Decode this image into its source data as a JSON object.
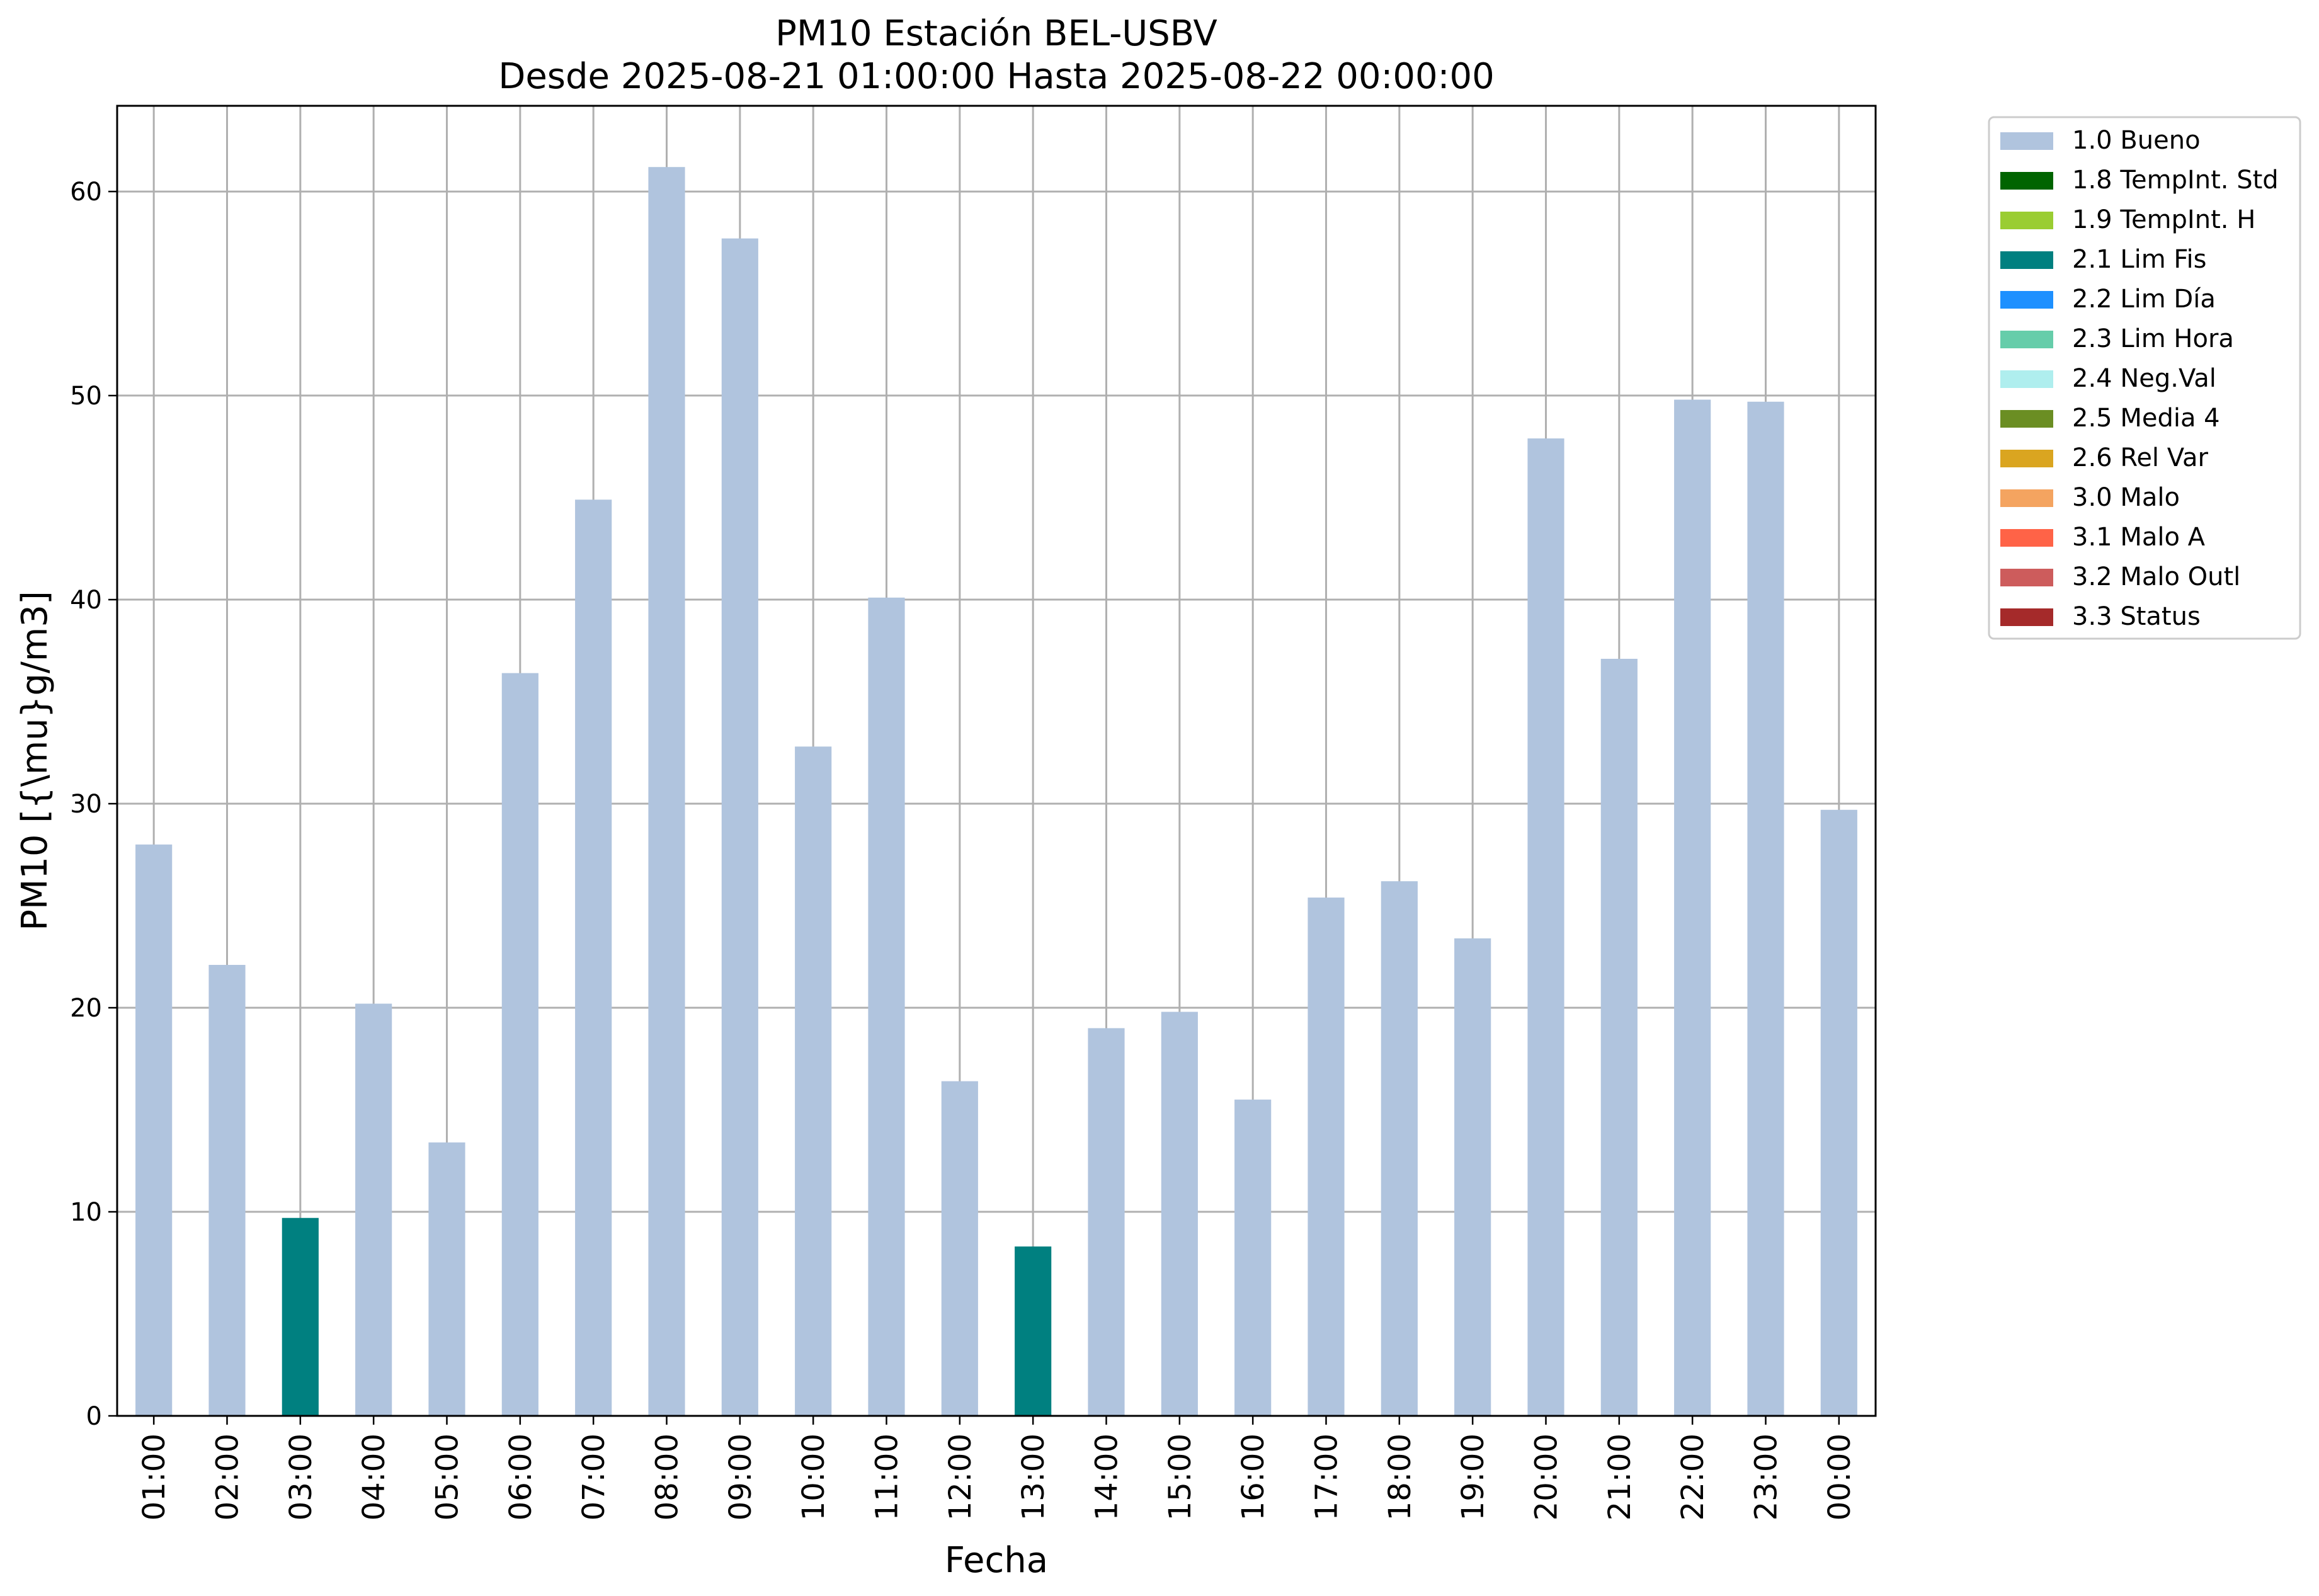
{
  "chart_data": {
    "type": "bar",
    "title_lines": [
      "PM10 Estación BEL-USBV",
      "Desde 2025-08-21 01:00:00 Hasta 2025-08-22 00:00:00"
    ],
    "xlabel": "Fecha",
    "ylabel": "PM10 [{\\mu}g/m3]",
    "ylim": [
      0,
      64.2
    ],
    "yticks": [
      0,
      10,
      20,
      30,
      40,
      50,
      60
    ],
    "grid": true,
    "legend_position": "outside-top-right",
    "categories": [
      "01:00",
      "02:00",
      "03:00",
      "04:00",
      "05:00",
      "06:00",
      "07:00",
      "08:00",
      "09:00",
      "10:00",
      "11:00",
      "12:00",
      "13:00",
      "14:00",
      "15:00",
      "16:00",
      "17:00",
      "18:00",
      "19:00",
      "20:00",
      "21:00",
      "22:00",
      "23:00",
      "00:00"
    ],
    "values": [
      28.0,
      22.1,
      9.7,
      20.2,
      13.4,
      36.4,
      44.9,
      61.2,
      57.7,
      32.8,
      40.1,
      16.4,
      8.3,
      19.0,
      19.8,
      15.5,
      25.4,
      26.2,
      23.4,
      47.9,
      37.1,
      49.8,
      49.7,
      29.7
    ],
    "flags": [
      "1.0 Bueno",
      "1.0 Bueno",
      "2.1 Lim Fis",
      "1.0 Bueno",
      "1.0 Bueno",
      "1.0 Bueno",
      "1.0 Bueno",
      "1.0 Bueno",
      "1.0 Bueno",
      "1.0 Bueno",
      "1.0 Bueno",
      "1.0 Bueno",
      "2.1 Lim Fis",
      "1.0 Bueno",
      "1.0 Bueno",
      "1.0 Bueno",
      "1.0 Bueno",
      "1.0 Bueno",
      "1.0 Bueno",
      "1.0 Bueno",
      "1.0 Bueno",
      "1.0 Bueno",
      "1.0 Bueno",
      "1.0 Bueno"
    ],
    "legend": [
      {
        "label": "1.0 Bueno",
        "color": "#b0c4de"
      },
      {
        "label": "1.8 TempInt. Std",
        "color": "#006400"
      },
      {
        "label": "1.9 TempInt. H",
        "color": "#9acd32"
      },
      {
        "label": "2.1 Lim Fis",
        "color": "#008080"
      },
      {
        "label": "2.2 Lim Día",
        "color": "#1e90ff"
      },
      {
        "label": "2.3 Lim Hora",
        "color": "#66cdaa"
      },
      {
        "label": "2.4 Neg.Val",
        "color": "#afeeee"
      },
      {
        "label": "2.5 Media 4",
        "color": "#6b8e23"
      },
      {
        "label": "2.6 Rel Var",
        "color": "#daa520"
      },
      {
        "label": "3.0 Malo",
        "color": "#f4a460"
      },
      {
        "label": "3.1 Malo A",
        "color": "#ff6347"
      },
      {
        "label": "3.2 Malo Outl",
        "color": "#cd5c5c"
      },
      {
        "label": "3.3 Status",
        "color": "#a52a2a"
      }
    ]
  }
}
